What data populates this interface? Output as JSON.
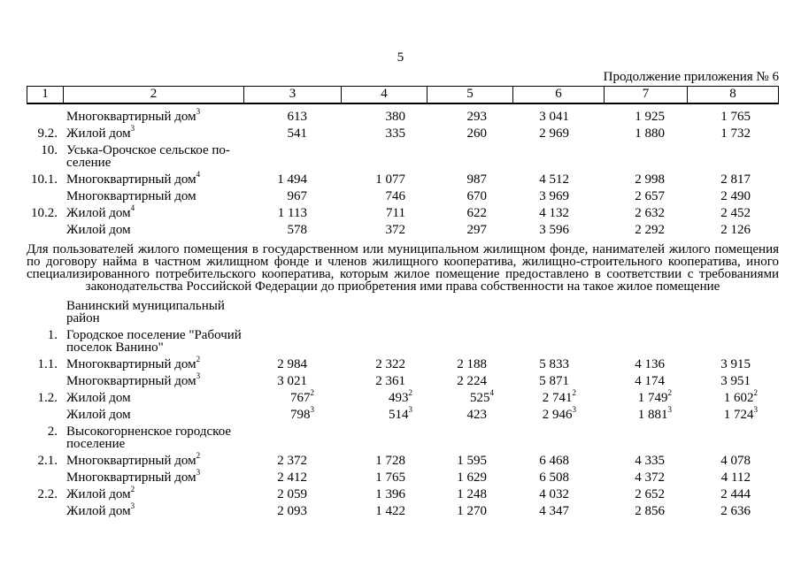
{
  "page": {
    "number": "5",
    "continuation": "Продолжение приложения № 6"
  },
  "table": {
    "header": [
      "1",
      "2",
      "3",
      "4",
      "5",
      "6",
      "7",
      "8"
    ],
    "rows_top": [
      {
        "num": "",
        "label": "Многоквартирный дом",
        "label_sup": "3",
        "values": [
          [
            "613",
            ""
          ],
          [
            "380",
            ""
          ],
          [
            "293",
            ""
          ],
          [
            "3 041",
            ""
          ],
          [
            "1 925",
            ""
          ],
          [
            "1 765",
            ""
          ]
        ]
      },
      {
        "num": "9.2.",
        "label": "Жилой дом",
        "label_sup": "3",
        "values": [
          [
            "541",
            ""
          ],
          [
            "335",
            ""
          ],
          [
            "260",
            ""
          ],
          [
            "2 969",
            ""
          ],
          [
            "1 880",
            ""
          ],
          [
            "1 732",
            ""
          ]
        ]
      },
      {
        "num": "10.",
        "label": "Уська-Орочское сельское по-\nселение",
        "label_sup": "",
        "values": []
      },
      {
        "num": "10.1.",
        "label": "Многоквартирный дом",
        "label_sup": "4",
        "values": [
          [
            "1 494",
            ""
          ],
          [
            "1 077",
            ""
          ],
          [
            "987",
            ""
          ],
          [
            "4 512",
            ""
          ],
          [
            "2 998",
            ""
          ],
          [
            "2 817",
            ""
          ]
        ]
      },
      {
        "num": "",
        "label": "Многоквартирный дом",
        "label_sup": "",
        "values": [
          [
            "967",
            ""
          ],
          [
            "746",
            ""
          ],
          [
            "670",
            ""
          ],
          [
            "3 969",
            ""
          ],
          [
            "2 657",
            ""
          ],
          [
            "2 490",
            ""
          ]
        ]
      },
      {
        "num": "10.2.",
        "label": "Жилой дом",
        "label_sup": "4",
        "values": [
          [
            "1 113",
            ""
          ],
          [
            "711",
            ""
          ],
          [
            "622",
            ""
          ],
          [
            "4 132",
            ""
          ],
          [
            "2 632",
            ""
          ],
          [
            "2 452",
            ""
          ]
        ]
      },
      {
        "num": "",
        "label": "Жилой дом",
        "label_sup": "",
        "values": [
          [
            "578",
            ""
          ],
          [
            "372",
            ""
          ],
          [
            "297",
            ""
          ],
          [
            "3 596",
            ""
          ],
          [
            "2 292",
            ""
          ],
          [
            "2 126",
            ""
          ]
        ]
      }
    ],
    "note_lines": [
      "Для пользователей жилого помещения в государственном или муниципальном жилищном фонде, нанимателей жилого помещения",
      "по договору найма в частном жилищном фонде и членов жилищного кооператива, жилищно-строительного кооператива, иного",
      "специализированного потребительского кооператива, которым жилое помещение предоставлено в соответствии с требованиями",
      "законодательства Российской Федерации до приобретения ими права собственности на такое жилое помещение"
    ],
    "rows_bottom": [
      {
        "num": "",
        "label": "Ванинский муниципальный\nрайон",
        "label_sup": "",
        "values": []
      },
      {
        "num": "1.",
        "label": "Городское поселение \"Рабочий\nпоселок Ванино\"",
        "label_sup": "",
        "values": []
      },
      {
        "num": "1.1.",
        "label": "Многоквартирный дом",
        "label_sup": "2",
        "values": [
          [
            "2 984",
            ""
          ],
          [
            "2 322",
            ""
          ],
          [
            "2 188",
            ""
          ],
          [
            "5 833",
            ""
          ],
          [
            "4 136",
            ""
          ],
          [
            "3 915",
            ""
          ]
        ]
      },
      {
        "num": "",
        "label": "Многоквартирный дом",
        "label_sup": "3",
        "values": [
          [
            "3 021",
            ""
          ],
          [
            "2 361",
            ""
          ],
          [
            "2 224",
            ""
          ],
          [
            "5 871",
            ""
          ],
          [
            "4 174",
            ""
          ],
          [
            "3 951",
            ""
          ]
        ]
      },
      {
        "num": "1.2.",
        "label": "Жилой дом",
        "label_sup": "",
        "values": [
          [
            "767",
            "2"
          ],
          [
            "493",
            "2"
          ],
          [
            "525",
            "4"
          ],
          [
            "2 741",
            "2"
          ],
          [
            "1 749",
            "2"
          ],
          [
            "1 602",
            "2"
          ]
        ]
      },
      {
        "num": "",
        "label": "Жилой дом",
        "label_sup": "",
        "values": [
          [
            "798",
            "3"
          ],
          [
            "514",
            "3"
          ],
          [
            "423",
            ""
          ],
          [
            "2 946",
            "3"
          ],
          [
            "1 881",
            "3"
          ],
          [
            "1 724",
            "3"
          ]
        ]
      },
      {
        "num": "2.",
        "label": "Высокогорненское городское\nпоселение",
        "label_sup": "",
        "values": []
      },
      {
        "num": "2.1.",
        "label": "Многоквартирный дом",
        "label_sup": "2",
        "values": [
          [
            "2 372",
            ""
          ],
          [
            "1 728",
            ""
          ],
          [
            "1 595",
            ""
          ],
          [
            "6 468",
            ""
          ],
          [
            "4 335",
            ""
          ],
          [
            "4 078",
            ""
          ]
        ]
      },
      {
        "num": "",
        "label": "Многоквартирный дом",
        "label_sup": "3",
        "values": [
          [
            "2 412",
            ""
          ],
          [
            "1 765",
            ""
          ],
          [
            "1 629",
            ""
          ],
          [
            "6 508",
            ""
          ],
          [
            "4 372",
            ""
          ],
          [
            "4 112",
            ""
          ]
        ]
      },
      {
        "num": "2.2.",
        "label": "Жилой дом",
        "label_sup": "2",
        "values": [
          [
            "2 059",
            ""
          ],
          [
            "1 396",
            ""
          ],
          [
            "1 248",
            ""
          ],
          [
            "4 032",
            ""
          ],
          [
            "2 652",
            ""
          ],
          [
            "2 444",
            ""
          ]
        ]
      },
      {
        "num": "",
        "label": "Жилой дом",
        "label_sup": "3",
        "values": [
          [
            "2 093",
            ""
          ],
          [
            "1 422",
            ""
          ],
          [
            "1 270",
            ""
          ],
          [
            "4 347",
            ""
          ],
          [
            "2 856",
            ""
          ],
          [
            "2 636",
            ""
          ]
        ]
      }
    ]
  }
}
